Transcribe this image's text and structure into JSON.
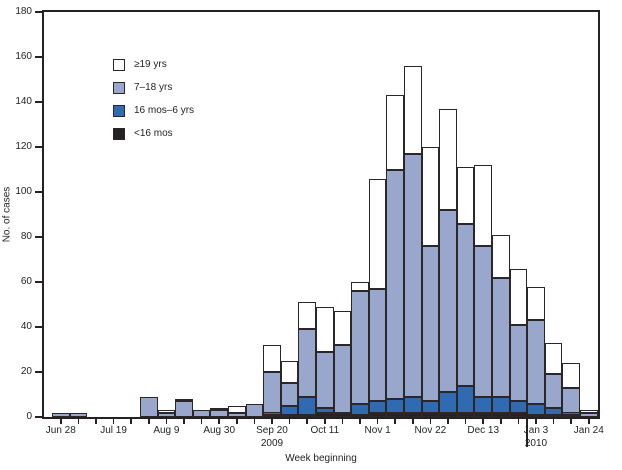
{
  "figure": {
    "ylabel": "No. of cases",
    "xlabel": "Week beginning"
  },
  "colors": {
    "white": "#ffffff",
    "light_blue": "#9aa7cd",
    "medium_blue": "#2f6ab3",
    "black": "#262122",
    "border": "#2b2627",
    "axis": "#262223",
    "text": "#231f20",
    "background": "#ffffff"
  },
  "legend": [
    {
      "label": "≥19 yrs",
      "color_key": "white"
    },
    {
      "label": "7–18 yrs",
      "color_key": "light_blue"
    },
    {
      "label": "16 mos–6 yrs",
      "color_key": "medium_blue"
    },
    {
      "label": "<16 mos",
      "color_key": "black"
    }
  ],
  "chart_data": {
    "type": "bar",
    "stacked": true,
    "title": "",
    "ylabel": "No. of cases",
    "xlabel": "Week beginning",
    "ylim": [
      0,
      180
    ],
    "ytick_step": 20,
    "grid": false,
    "legend_position": "upper-left-inside",
    "categories": [
      "Jun 28",
      "Jul 5",
      "Jul 12",
      "Jul 19",
      "Jul 26",
      "Aug 2",
      "Aug 9",
      "Aug 16",
      "Aug 23",
      "Aug 30",
      "Sep 6",
      "Sep 13",
      "Sep 20",
      "Sep 27",
      "Oct 4",
      "Oct 11",
      "Oct 18",
      "Oct 25",
      "Nov 1",
      "Nov 8",
      "Nov 15",
      "Nov 22",
      "Nov 29",
      "Dec 6",
      "Dec 13",
      "Dec 20",
      "Dec 27",
      "Jan 3",
      "Jan 10",
      "Jan 17",
      "Jan 24"
    ],
    "labeled_tick_indices": [
      0,
      3,
      6,
      9,
      12,
      15,
      18,
      21,
      24,
      27,
      30
    ],
    "year_labels": [
      {
        "index": 12,
        "label": "2009"
      },
      {
        "index": 27,
        "label": "2010"
      }
    ],
    "year_separator_before_index": 27,
    "series": [
      {
        "name": "<16 mos",
        "color_key": "black",
        "values": [
          0,
          0,
          0,
          0,
          0,
          0,
          0,
          0,
          0,
          0,
          0,
          0,
          1,
          1,
          1,
          2,
          2,
          1,
          2,
          2,
          2,
          2,
          2,
          2,
          2,
          2,
          2,
          1,
          1,
          1,
          0
        ]
      },
      {
        "name": "16 mos–6 yrs",
        "color_key": "medium_blue",
        "values": [
          0,
          0,
          0,
          0,
          0,
          0,
          0,
          0,
          0,
          0,
          0,
          0,
          1,
          4,
          8,
          2,
          0,
          5,
          5,
          6,
          7,
          5,
          9,
          12,
          7,
          7,
          5,
          5,
          3,
          1,
          0
        ]
      },
      {
        "name": "7–18 yrs",
        "color_key": "light_blue",
        "values": [
          2,
          2,
          0,
          0,
          0,
          9,
          2,
          7,
          3,
          3,
          2,
          6,
          18,
          10,
          30,
          25,
          30,
          50,
          50,
          102,
          108,
          69,
          81,
          72,
          67,
          53,
          34,
          37,
          15,
          11,
          2
        ]
      },
      {
        "name": "≥19 yrs",
        "color_key": "white",
        "values": [
          0,
          0,
          0,
          0,
          0,
          0,
          1,
          1,
          0,
          1,
          3,
          0,
          12,
          10,
          12,
          20,
          15,
          4,
          49,
          33,
          39,
          44,
          45,
          25,
          36,
          19,
          25,
          15,
          14,
          11,
          1
        ]
      }
    ],
    "totals": [
      2,
      2,
      0,
      0,
      0,
      9,
      3,
      8,
      3,
      4,
      5,
      6,
      32,
      25,
      51,
      49,
      47,
      60,
      106,
      143,
      156,
      120,
      137,
      111,
      112,
      81,
      66,
      58,
      33,
      24,
      3
    ]
  }
}
